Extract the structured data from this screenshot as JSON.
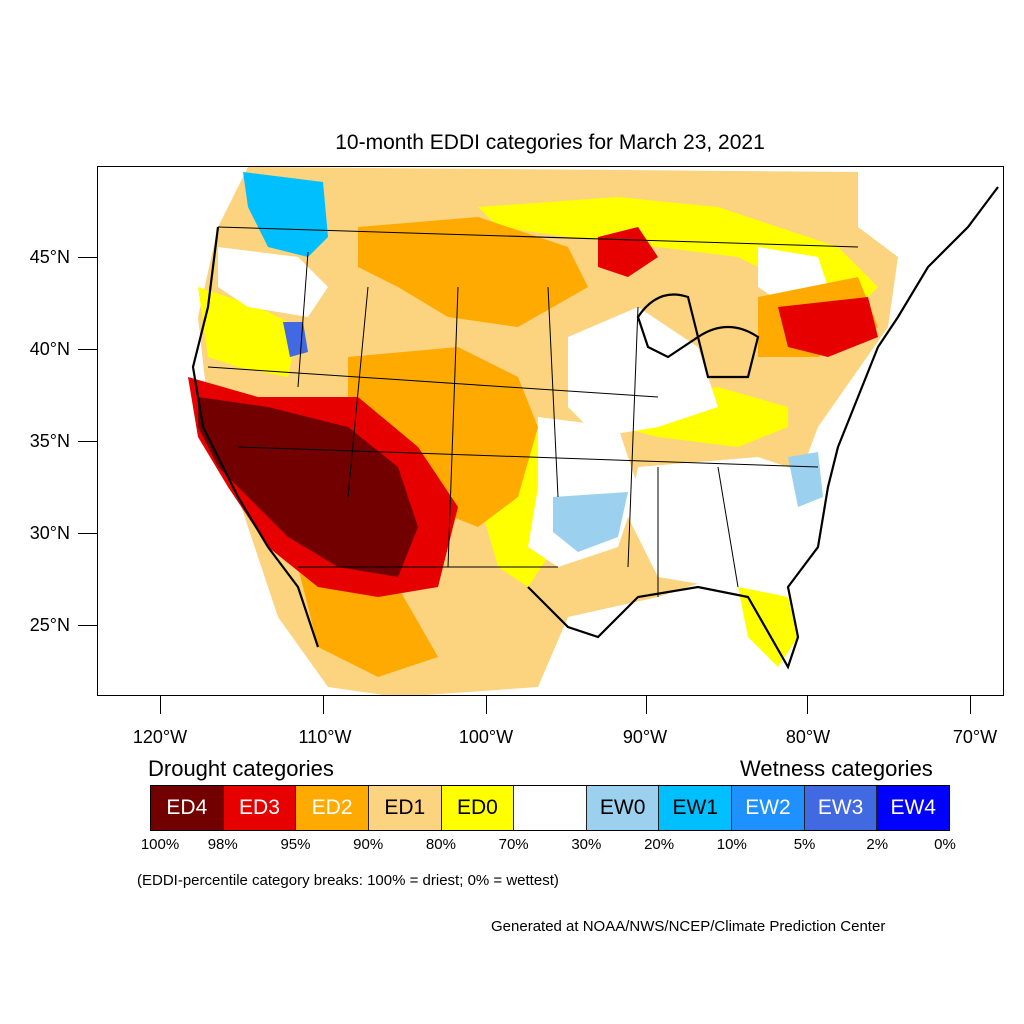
{
  "title": "10-month EDDI categories for March 23, 2021",
  "latitude_labels": [
    "45°N",
    "40°N",
    "35°N",
    "30°N",
    "25°N"
  ],
  "longitude_labels": [
    "120°W",
    "110°W",
    "100°W",
    "90°W",
    "80°W",
    "70°W"
  ],
  "legend": {
    "drought_heading": "Drought categories",
    "wetness_heading": "Wetness categories",
    "categories": [
      {
        "label": "ED4",
        "color": "#730000",
        "text_color": "#ffffff"
      },
      {
        "label": "ED3",
        "color": "#e60000",
        "text_color": "#ffffff"
      },
      {
        "label": "ED2",
        "color": "#ffaa00",
        "text_color": "#ffffff"
      },
      {
        "label": "ED1",
        "color": "#fcd37f",
        "text_color": "#000000"
      },
      {
        "label": "ED0",
        "color": "#ffff00",
        "text_color": "#000000"
      },
      {
        "label": "",
        "color": "#ffffff",
        "text_color": "#000000"
      },
      {
        "label": "EW0",
        "color": "#9bd1ee",
        "text_color": "#000000"
      },
      {
        "label": "EW1",
        "color": "#00bfff",
        "text_color": "#000000"
      },
      {
        "label": "EW2",
        "color": "#1e90ff",
        "text_color": "#ffffff"
      },
      {
        "label": "EW3",
        "color": "#4169e1",
        "text_color": "#ffffff"
      },
      {
        "label": "EW4",
        "color": "#0000ff",
        "text_color": "#ffffff"
      }
    ],
    "percentile_breaks": [
      "100%",
      "98%",
      "95%",
      "90%",
      "80%",
      "70%",
      "30%",
      "20%",
      "10%",
      "5%",
      "2%",
      "0%"
    ]
  },
  "breaks_note": "(EDDI-percentile category breaks: 100% = driest; 0% = wettest)",
  "credit": "Generated at NOAA/NWS/NCEP/Climate Prediction Center"
}
